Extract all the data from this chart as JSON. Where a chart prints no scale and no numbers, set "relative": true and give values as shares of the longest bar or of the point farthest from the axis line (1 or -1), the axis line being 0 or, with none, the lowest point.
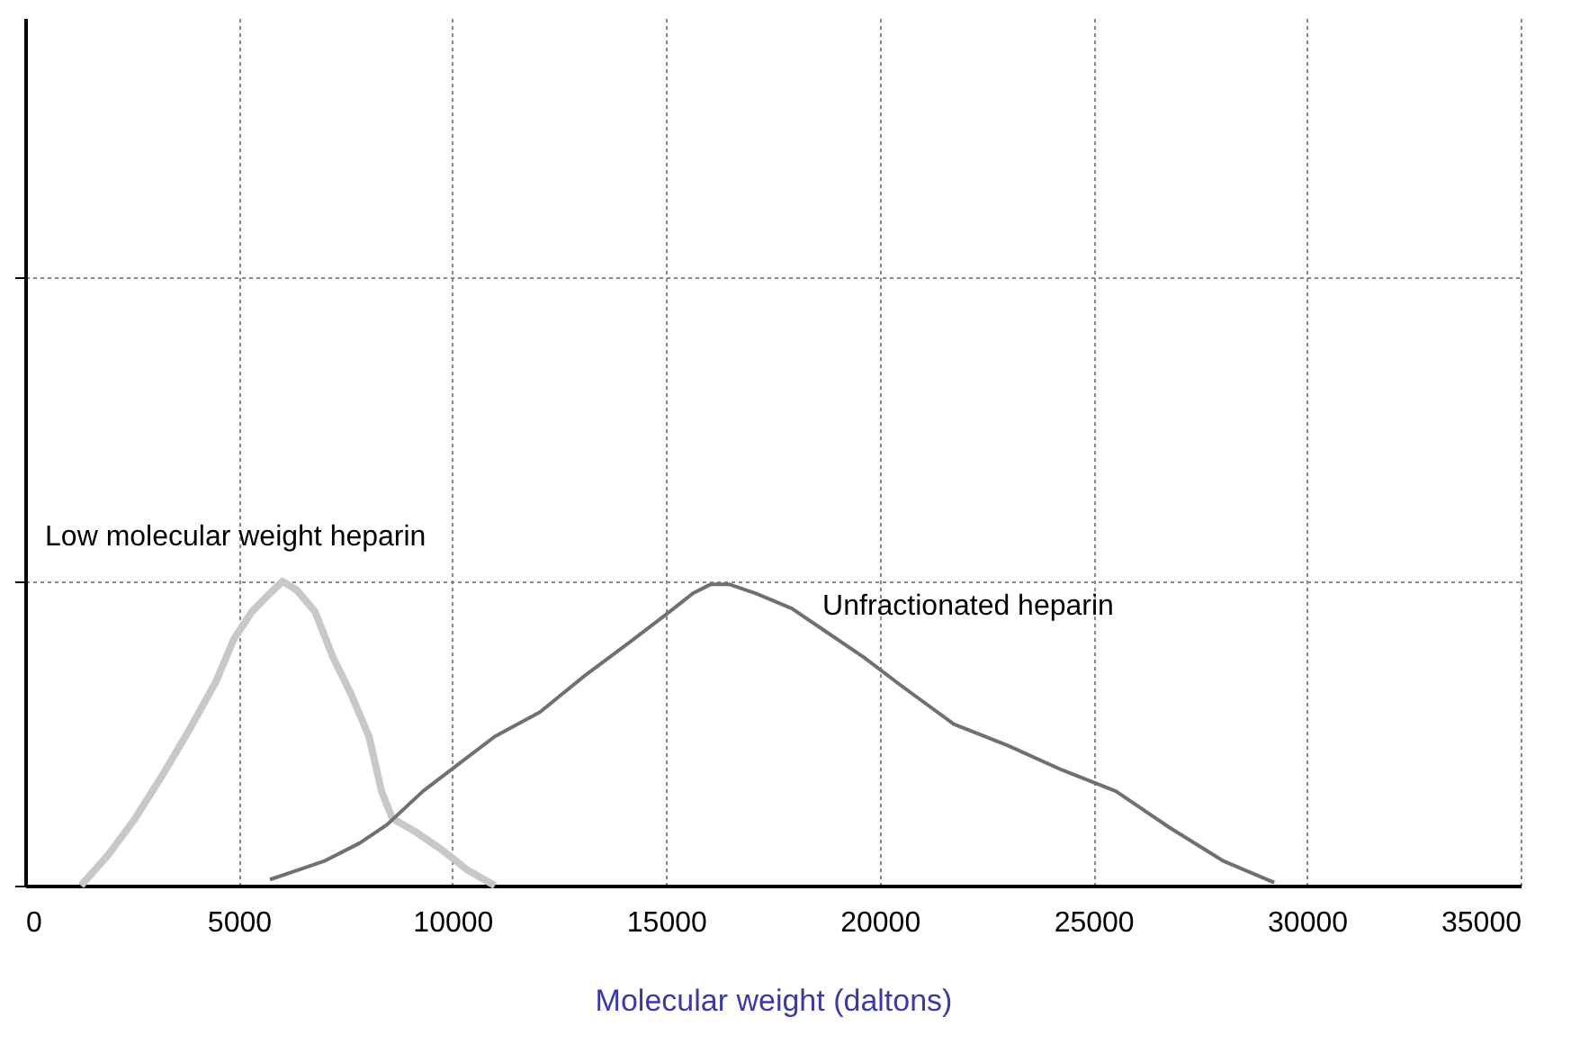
{
  "chart_data": {
    "type": "line",
    "relative": true,
    "xlabel": "Molecular weight  (daltons)",
    "xlim": [
      0,
      35000
    ],
    "xticks": [
      0,
      5000,
      10000,
      15000,
      20000,
      25000,
      30000,
      35000
    ],
    "grid": true,
    "marker": "none",
    "line_style": "solid",
    "series": [
      {
        "name": "Low molecular weight heparin",
        "color": "#c8c8c8",
        "x": [
          1306,
          1938,
          2570,
          3201,
          3833,
          4465,
          4886,
          5307,
          5729,
          6024,
          6361,
          6782,
          7203,
          7624,
          8046,
          8340,
          8593,
          9099,
          9730,
          10362,
          10994
        ],
        "values": [
          0,
          0.1,
          0.22,
          0.36,
          0.51,
          0.67,
          0.81,
          0.9,
          0.96,
          1.0,
          0.97,
          0.9,
          0.75,
          0.63,
          0.49,
          0.31,
          0.22,
          0.18,
          0.12,
          0.05,
          0
        ]
      },
      {
        "name": "Unfractionated heparin",
        "color": "#707070",
        "x": [
          5729,
          6361,
          6992,
          7835,
          8467,
          9309,
          10152,
          10994,
          12047,
          13100,
          14153,
          14996,
          15628,
          16049,
          16470,
          17102,
          17944,
          18787,
          19629,
          20472,
          21735,
          22999,
          24263,
          25527,
          26790,
          28054,
          29234
        ],
        "values": [
          0.02,
          0.05,
          0.08,
          0.14,
          0.2,
          0.31,
          0.4,
          0.49,
          0.57,
          0.69,
          0.8,
          0.89,
          0.96,
          0.99,
          0.99,
          0.96,
          0.91,
          0.83,
          0.75,
          0.66,
          0.53,
          0.46,
          0.38,
          0.31,
          0.19,
          0.08,
          0.01
        ]
      }
    ]
  }
}
